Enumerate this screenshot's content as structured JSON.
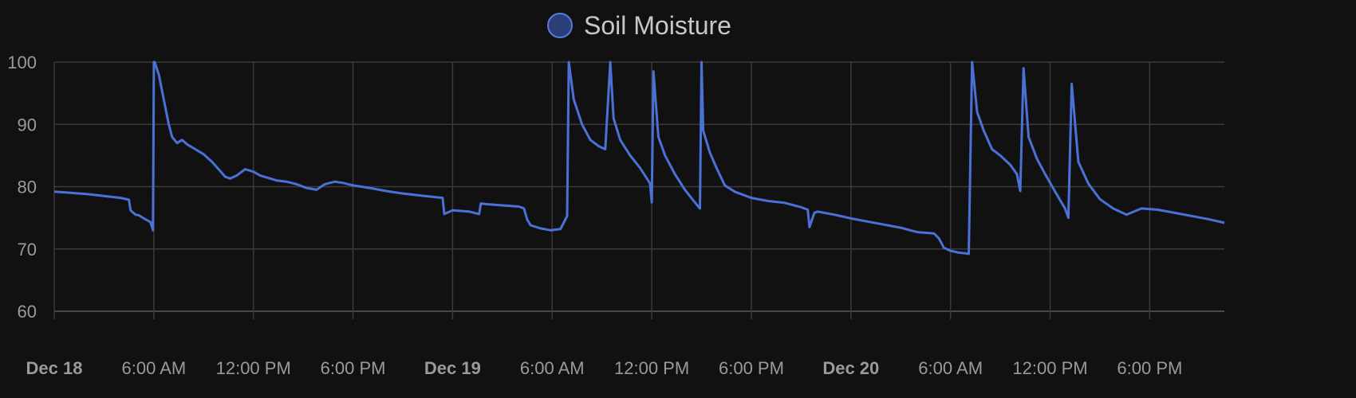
{
  "legend": {
    "label": "Soil Moisture",
    "marker_color": "#2a3f7a",
    "marker_border": "#5a7ad8"
  },
  "colors": {
    "background": "#111111",
    "grid": "#3a3a3a",
    "line": "#4a72d6",
    "text": "#9a9a9a"
  },
  "chart_data": {
    "type": "line",
    "title": "",
    "xlabel": "",
    "ylabel": "",
    "ylim": [
      60,
      100
    ],
    "y_ticks": [
      60,
      70,
      80,
      90,
      100
    ],
    "xlim_hours": [
      0,
      70.5
    ],
    "x_ticks": [
      {
        "hour": 0,
        "label": "Dec 18",
        "major": true
      },
      {
        "hour": 6,
        "label": "6:00 AM",
        "major": false
      },
      {
        "hour": 12,
        "label": "12:00 PM",
        "major": false
      },
      {
        "hour": 18,
        "label": "6:00 PM",
        "major": false
      },
      {
        "hour": 24,
        "label": "Dec 19",
        "major": true
      },
      {
        "hour": 30,
        "label": "6:00 AM",
        "major": false
      },
      {
        "hour": 36,
        "label": "12:00 PM",
        "major": false
      },
      {
        "hour": 42,
        "label": "6:00 PM",
        "major": false
      },
      {
        "hour": 48,
        "label": "Dec 20",
        "major": true
      },
      {
        "hour": 54,
        "label": "6:00 AM",
        "major": false
      },
      {
        "hour": 60,
        "label": "12:00 PM",
        "major": false
      },
      {
        "hour": 66,
        "label": "6:00 PM",
        "major": false
      }
    ],
    "grid": true,
    "legend_position": "top-center",
    "series": [
      {
        "name": "Soil Moisture",
        "x": [
          0,
          1,
          2,
          3,
          4,
          4.5,
          4.6,
          4.9,
          5.1,
          5.4,
          5.8,
          5.95,
          6.0,
          6.05,
          6.3,
          6.6,
          6.9,
          7.1,
          7.4,
          7.7,
          8.0,
          8.5,
          9.0,
          9.5,
          10.0,
          10.3,
          10.6,
          11.0,
          11.5,
          12.0,
          12.4,
          12.9,
          13.4,
          14.0,
          14.6,
          15.2,
          15.8,
          16.3,
          16.9,
          17.4,
          18,
          19,
          20,
          21,
          22,
          23,
          23.4,
          23.5,
          24,
          25,
          25.6,
          25.7,
          26,
          27,
          28,
          28.3,
          28.5,
          28.7,
          29.3,
          29.9,
          30.5,
          30.9,
          31.0,
          31.3,
          31.8,
          32.3,
          32.8,
          33.2,
          33.5,
          33.7,
          34.1,
          34.7,
          35.3,
          35.9,
          36.0,
          36.1,
          36.4,
          36.8,
          37.4,
          38.0,
          38.5,
          38.9,
          39.0,
          39.1,
          39.5,
          39.9,
          40.4,
          41.0,
          42,
          43,
          44,
          45,
          45.4,
          45.5,
          45.8,
          46,
          47,
          48,
          49,
          50,
          51,
          52,
          53,
          53.3,
          53.6,
          54,
          54.5,
          54.9,
          55.1,
          55.3,
          55.6,
          56.0,
          56.5,
          57.0,
          57.6,
          58.0,
          58.2,
          58.4,
          58.7,
          59.2,
          59.7,
          60.3,
          60.9,
          61.1,
          61.3,
          61.7,
          62.3,
          63.0,
          63.8,
          64.6,
          65.5,
          66.5,
          67.5,
          68.5,
          69.5,
          70.5
        ],
        "y": [
          79.2,
          79.0,
          78.8,
          78.5,
          78.2,
          77.9,
          76.2,
          75.5,
          75.4,
          74.9,
          74.3,
          73.0,
          100,
          100,
          98,
          94,
          90,
          88,
          87,
          87.5,
          86.8,
          86.0,
          85.2,
          84.0,
          82.5,
          81.6,
          81.3,
          81.8,
          82.8,
          82.4,
          81.8,
          81.4,
          81.0,
          80.8,
          80.4,
          79.8,
          79.5,
          80.4,
          80.8,
          80.6,
          80.2,
          79.8,
          79.3,
          78.9,
          78.6,
          78.3,
          78.2,
          75.6,
          76.2,
          76.0,
          75.6,
          77.3,
          77.2,
          77.0,
          76.8,
          76.5,
          74.7,
          73.8,
          73.3,
          73.0,
          73.2,
          75.3,
          100,
          94,
          90,
          87.5,
          86.5,
          86.0,
          100,
          91,
          87.5,
          85.0,
          83.0,
          80.5,
          77.5,
          98.5,
          88,
          85.0,
          82.0,
          79.5,
          77.8,
          76.5,
          100,
          89,
          85.5,
          83.0,
          80.2,
          79.2,
          78.2,
          77.7,
          77.4,
          76.7,
          76.3,
          73.5,
          75.8,
          76.0,
          75.5,
          74.9,
          74.4,
          73.9,
          73.4,
          72.7,
          72.5,
          71.7,
          70.2,
          69.7,
          69.4,
          69.3,
          69.2,
          100,
          92,
          89,
          86.0,
          85.0,
          83.5,
          82.0,
          79.3,
          99,
          88,
          84.5,
          82.0,
          79.2,
          76.5,
          75.0,
          96.5,
          84,
          80.5,
          78.0,
          76.5,
          75.5,
          76.5,
          76.3,
          75.8,
          75.3,
          74.8,
          74.2
        ]
      }
    ]
  }
}
